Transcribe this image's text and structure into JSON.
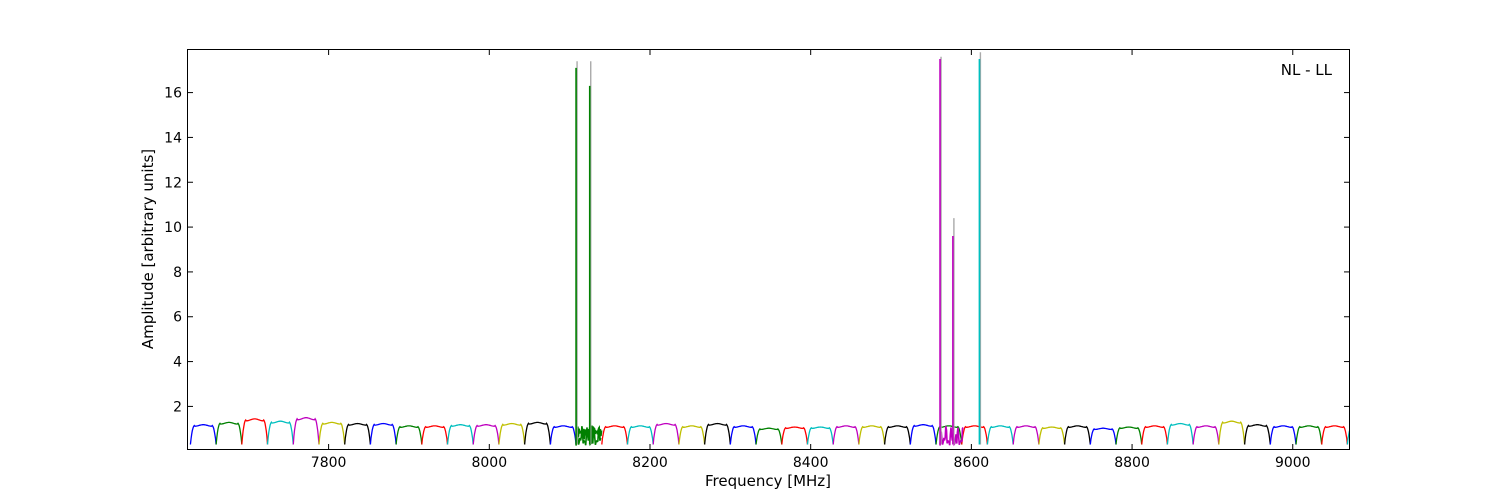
{
  "chart_data": {
    "type": "line",
    "title": "",
    "annotation": "NL - LL",
    "annotation_placement": "top-right",
    "xlabel": "Frequency [MHz]",
    "ylabel": "Amplitude [arbitrary units]",
    "xlim": [
      7625,
      9070
    ],
    "ylim": [
      0.1,
      17.9
    ],
    "xticks": [
      7800,
      8000,
      8200,
      8400,
      8600,
      8800,
      9000
    ],
    "yticks": [
      2,
      4,
      6,
      8,
      10,
      12,
      14,
      16
    ],
    "grid": false,
    "legend": "none",
    "channel_width_mhz": 32,
    "channel_start_mhz": 7628,
    "channel_profile": {
      "shape": "bandpass",
      "edge_min": 0.3,
      "description": "each channel rises from ~0.3 at its edges to a plateau of ~1.0-1.45"
    },
    "series": [
      {
        "color": "#0000ff",
        "channel_levels": [
          1.15,
          1.2,
          1.1,
          1.1,
          1.15,
          1.0,
          1.1,
          1.05,
          1.3
        ]
      },
      {
        "color": "#008000",
        "channel_levels": [
          1.25,
          1.1,
          1.1,
          1.0,
          1.1,
          1.05,
          1.1,
          1.35,
          1.05
        ]
      },
      {
        "color": "#ff0000",
        "channel_levels": [
          1.4,
          1.1,
          1.1,
          1.05,
          1.1,
          1.1,
          1.1,
          1.1,
          1.2
        ]
      },
      {
        "color": "#00bfbf",
        "channel_levels": [
          1.3,
          1.15,
          1.1,
          1.05,
          1.1,
          1.2,
          1.1,
          1.1,
          1.5
        ]
      },
      {
        "color": "#bf00bf",
        "channel_levels": [
          1.45,
          1.15,
          1.2,
          1.1,
          1.1,
          1.1,
          1.1,
          1.1,
          1.1
        ]
      },
      {
        "color": "#bfbf00",
        "channel_levels": [
          1.25,
          1.2,
          1.1,
          1.1,
          1.05,
          1.3,
          1.1,
          1.1,
          1.3
        ]
      },
      {
        "color": "#000000",
        "channel_levels": [
          1.2,
          1.25,
          1.2,
          1.1,
          1.1,
          1.15,
          1.1,
          1.15
        ]
      }
    ],
    "spikes": [
      {
        "x": 8108,
        "y": 17.1,
        "ghost_y": 17.4,
        "color": "#008000"
      },
      {
        "x": 8125,
        "y": 16.3,
        "ghost_y": 17.4,
        "color": "#008000"
      },
      {
        "x": 8561,
        "y": 17.5,
        "ghost_y": 17.6,
        "color": "#bf00bf"
      },
      {
        "x": 8577,
        "y": 9.6,
        "ghost_y": 10.4,
        "color": "#bf00bf"
      },
      {
        "x": 8610,
        "y": 17.5,
        "ghost_y": 17.8,
        "color": "#00bfbf"
      }
    ],
    "noisy_segments": [
      {
        "x0": 8108,
        "x1": 8140,
        "color": "#008000"
      },
      {
        "x0": 8561,
        "x1": 8590,
        "color": "#bf00bf"
      }
    ],
    "ghost_color": "#aaaaaa"
  }
}
